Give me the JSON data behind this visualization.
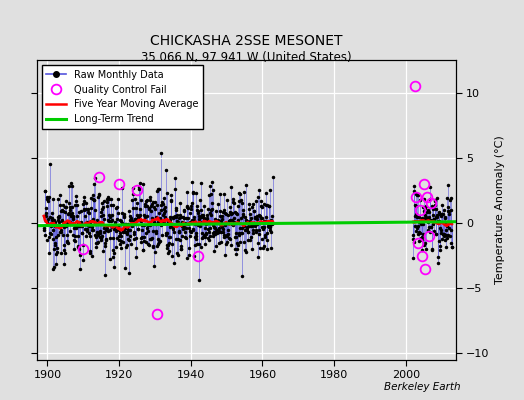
{
  "title": "CHICKASHA 2SSE MESONET",
  "subtitle": "35.066 N, 97.941 W (United States)",
  "ylabel": "Temperature Anomaly (°C)",
  "xlim": [
    1897,
    2014
  ],
  "ylim": [
    -10.5,
    12.5
  ],
  "xticks": [
    1900,
    1920,
    1940,
    1960,
    1980,
    2000
  ],
  "yticks": [
    -10,
    -5,
    0,
    5,
    10
  ],
  "background_color": "#e0e0e0",
  "plot_bg_color": "#e0e0e0",
  "grid_color": "white",
  "raw_line_color": "#5555dd",
  "raw_marker_color": "black",
  "moving_avg_color": "red",
  "trend_color": "#00cc00",
  "qc_fail_color": "magenta",
  "watermark": "Berkeley Earth",
  "seed": 12345,
  "segment1_start": 1899,
  "segment1_end": 1962,
  "segment2_start": 2002,
  "segment2_end": 2012
}
